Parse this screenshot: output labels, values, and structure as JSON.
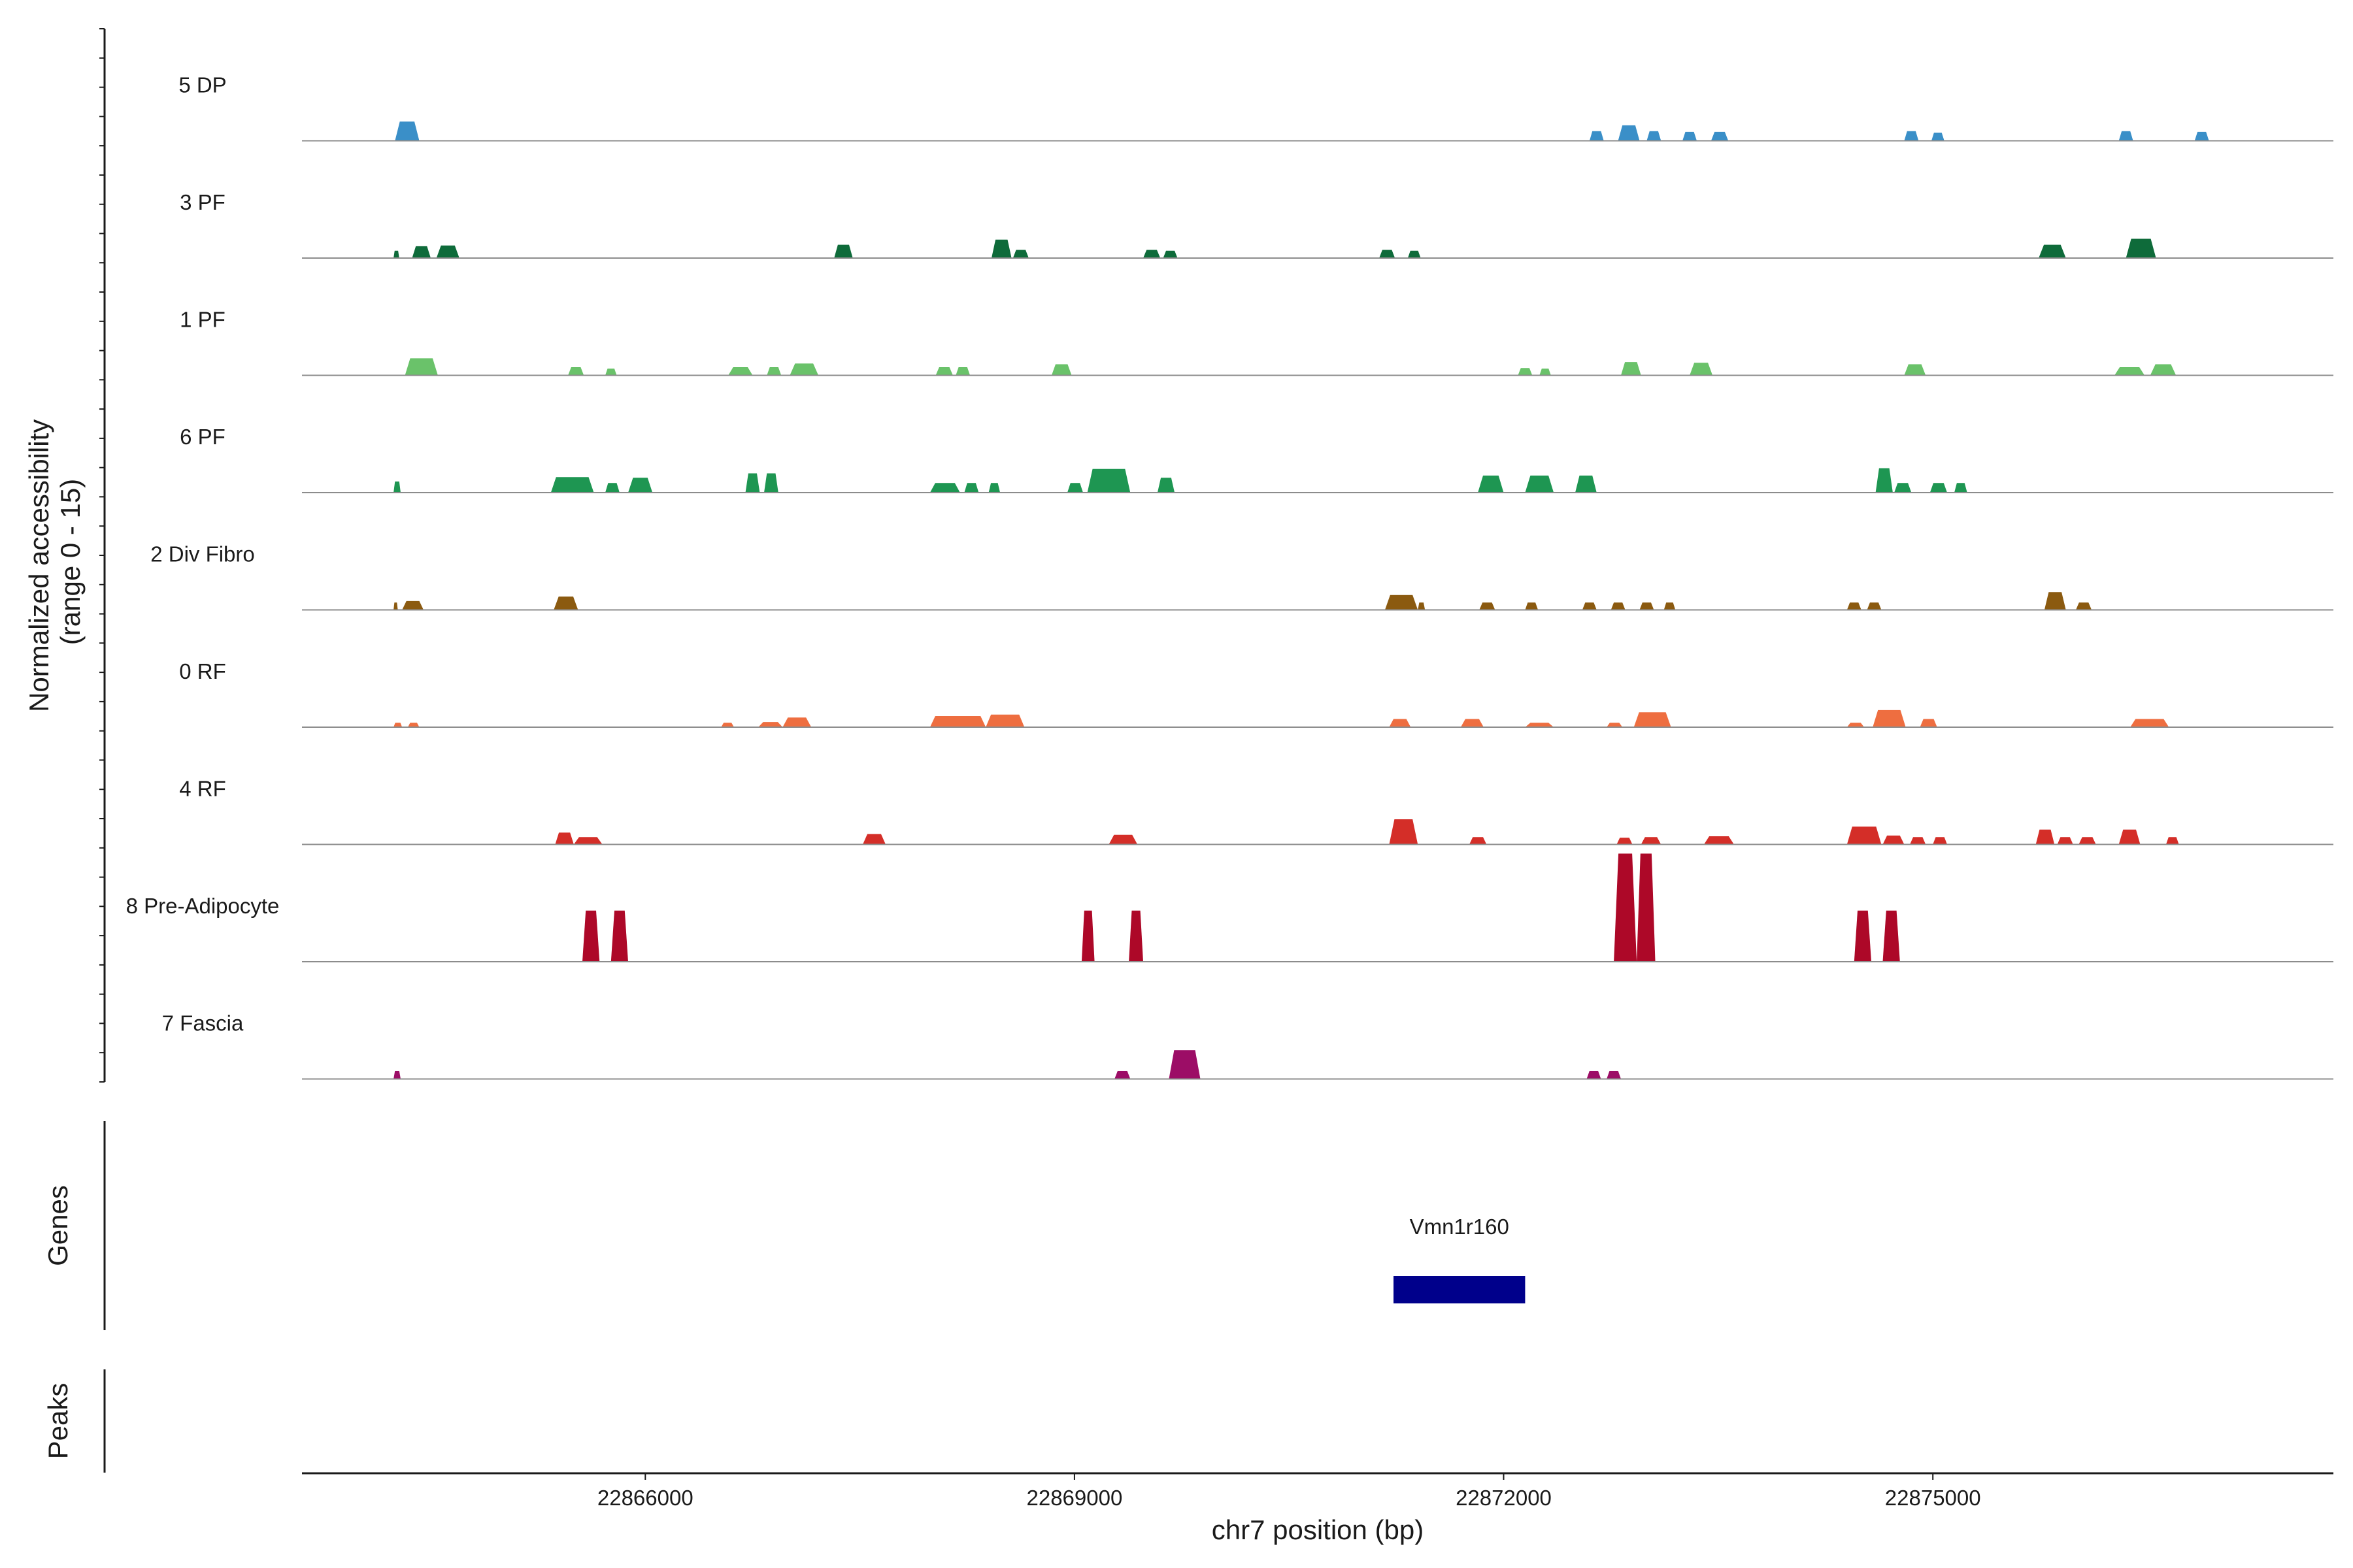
{
  "chart_data": {
    "type": "area",
    "title": "",
    "xlabel": "chr7 position (bp)",
    "ylabel_line1": "Normalized accessibility",
    "ylabel_line2": "(range 0 - 15)",
    "ylim": [
      0,
      15
    ],
    "xlim": [
      22863600,
      22877800
    ],
    "x_ticks": [
      22866000,
      22869000,
      22872000,
      22875000
    ],
    "x_tick_labels": [
      "22866000",
      "22869000",
      "22872000",
      "22875000"
    ],
    "genes_label": "Genes",
    "peaks_label": "Peaks",
    "genes": [
      {
        "name": "Vmn1r160",
        "start": 22871230,
        "end": 22872150,
        "color": "#00008B"
      }
    ],
    "series": [
      {
        "name": "5 DP",
        "color": "#3A8FC8",
        "peaks": [
          {
            "start": 22864250,
            "end": 22864420,
            "height": 2.6
          },
          {
            "start": 22872600,
            "end": 22872700,
            "height": 1.3
          },
          {
            "start": 22872800,
            "end": 22872950,
            "height": 2.1
          },
          {
            "start": 22873000,
            "end": 22873100,
            "height": 1.3
          },
          {
            "start": 22873250,
            "end": 22873350,
            "height": 1.2
          },
          {
            "start": 22873450,
            "end": 22873570,
            "height": 1.2
          },
          {
            "start": 22874800,
            "end": 22874900,
            "height": 1.3
          },
          {
            "start": 22874990,
            "end": 22875080,
            "height": 1.1
          },
          {
            "start": 22876300,
            "end": 22876400,
            "height": 1.3
          },
          {
            "start": 22876830,
            "end": 22876930,
            "height": 1.2
          }
        ]
      },
      {
        "name": "3 PF",
        "color": "#0E6B3A",
        "peaks": [
          {
            "start": 22864240,
            "end": 22864280,
            "height": 1.0
          },
          {
            "start": 22864370,
            "end": 22864500,
            "height": 1.6
          },
          {
            "start": 22864540,
            "end": 22864700,
            "height": 1.7
          },
          {
            "start": 22867320,
            "end": 22867450,
            "height": 1.8
          },
          {
            "start": 22868420,
            "end": 22868560,
            "height": 2.5
          },
          {
            "start": 22868570,
            "end": 22868680,
            "height": 1.1
          },
          {
            "start": 22869480,
            "end": 22869600,
            "height": 1.1
          },
          {
            "start": 22869620,
            "end": 22869720,
            "height": 1.0
          },
          {
            "start": 22871130,
            "end": 22871240,
            "height": 1.1
          },
          {
            "start": 22871330,
            "end": 22871420,
            "height": 1.0
          },
          {
            "start": 22875740,
            "end": 22875930,
            "height": 1.8
          },
          {
            "start": 22876350,
            "end": 22876560,
            "height": 2.6
          }
        ]
      },
      {
        "name": "1 PF",
        "color": "#6AC26A",
        "peaks": [
          {
            "start": 22864320,
            "end": 22864550,
            "height": 2.3
          },
          {
            "start": 22865460,
            "end": 22865570,
            "height": 1.1
          },
          {
            "start": 22865720,
            "end": 22865800,
            "height": 0.9
          },
          {
            "start": 22866580,
            "end": 22866750,
            "height": 1.1
          },
          {
            "start": 22866850,
            "end": 22866950,
            "height": 1.1
          },
          {
            "start": 22867010,
            "end": 22867210,
            "height": 1.6
          },
          {
            "start": 22868030,
            "end": 22868150,
            "height": 1.1
          },
          {
            "start": 22868170,
            "end": 22868270,
            "height": 1.1
          },
          {
            "start": 22868840,
            "end": 22868980,
            "height": 1.5
          },
          {
            "start": 22872100,
            "end": 22872200,
            "height": 1.0
          },
          {
            "start": 22872250,
            "end": 22872330,
            "height": 0.9
          },
          {
            "start": 22872820,
            "end": 22872960,
            "height": 1.8
          },
          {
            "start": 22873300,
            "end": 22873460,
            "height": 1.7
          },
          {
            "start": 22874800,
            "end": 22874950,
            "height": 1.5
          },
          {
            "start": 22876270,
            "end": 22876480,
            "height": 1.1
          },
          {
            "start": 22876520,
            "end": 22876700,
            "height": 1.5
          }
        ]
      },
      {
        "name": "6 PF",
        "color": "#1E9652",
        "peaks": [
          {
            "start": 22864240,
            "end": 22864290,
            "height": 1.5
          },
          {
            "start": 22865340,
            "end": 22865640,
            "height": 2.1
          },
          {
            "start": 22865720,
            "end": 22865820,
            "height": 1.3
          },
          {
            "start": 22865880,
            "end": 22866050,
            "height": 2.0
          },
          {
            "start": 22866700,
            "end": 22866800,
            "height": 2.6
          },
          {
            "start": 22866830,
            "end": 22866930,
            "height": 2.6
          },
          {
            "start": 22867990,
            "end": 22868200,
            "height": 1.3
          },
          {
            "start": 22868230,
            "end": 22868330,
            "height": 1.3
          },
          {
            "start": 22868400,
            "end": 22868480,
            "height": 1.3
          },
          {
            "start": 22868950,
            "end": 22869060,
            "height": 1.3
          },
          {
            "start": 22869090,
            "end": 22869390,
            "height": 3.2
          },
          {
            "start": 22869580,
            "end": 22869700,
            "height": 2.0
          },
          {
            "start": 22871820,
            "end": 22872000,
            "height": 2.3
          },
          {
            "start": 22872150,
            "end": 22872350,
            "height": 2.3
          },
          {
            "start": 22872500,
            "end": 22872650,
            "height": 2.3
          },
          {
            "start": 22874600,
            "end": 22874720,
            "height": 3.3
          },
          {
            "start": 22874730,
            "end": 22874850,
            "height": 1.3
          },
          {
            "start": 22874980,
            "end": 22875100,
            "height": 1.3
          },
          {
            "start": 22875150,
            "end": 22875240,
            "height": 1.3
          }
        ]
      },
      {
        "name": "2 Div Fibro",
        "color": "#8B5A10",
        "peaks": [
          {
            "start": 22864240,
            "end": 22864270,
            "height": 1.0
          },
          {
            "start": 22864300,
            "end": 22864450,
            "height": 1.2
          },
          {
            "start": 22865360,
            "end": 22865530,
            "height": 1.8
          },
          {
            "start": 22871170,
            "end": 22871400,
            "height": 2.0
          },
          {
            "start": 22871400,
            "end": 22871450,
            "height": 1.0
          },
          {
            "start": 22871830,
            "end": 22871940,
            "height": 1.0
          },
          {
            "start": 22872150,
            "end": 22872240,
            "height": 1.0
          },
          {
            "start": 22872550,
            "end": 22872650,
            "height": 1.0
          },
          {
            "start": 22872750,
            "end": 22872850,
            "height": 1.0
          },
          {
            "start": 22872950,
            "end": 22873050,
            "height": 1.0
          },
          {
            "start": 22873120,
            "end": 22873200,
            "height": 1.0
          },
          {
            "start": 22874400,
            "end": 22874500,
            "height": 1.0
          },
          {
            "start": 22874540,
            "end": 22874640,
            "height": 1.0
          },
          {
            "start": 22875780,
            "end": 22875930,
            "height": 2.4
          },
          {
            "start": 22876000,
            "end": 22876110,
            "height": 1.0
          }
        ]
      },
      {
        "name": "0 RF",
        "color": "#EE6E40",
        "peaks": [
          {
            "start": 22864240,
            "end": 22864300,
            "height": 0.6
          },
          {
            "start": 22864340,
            "end": 22864420,
            "height": 0.6
          },
          {
            "start": 22866530,
            "end": 22866620,
            "height": 0.6
          },
          {
            "start": 22866790,
            "end": 22866960,
            "height": 0.7
          },
          {
            "start": 22866960,
            "end": 22867160,
            "height": 1.3
          },
          {
            "start": 22867990,
            "end": 22868380,
            "height": 1.5
          },
          {
            "start": 22868380,
            "end": 22868650,
            "height": 1.7
          },
          {
            "start": 22871200,
            "end": 22871350,
            "height": 1.1
          },
          {
            "start": 22871700,
            "end": 22871860,
            "height": 1.1
          },
          {
            "start": 22872150,
            "end": 22872350,
            "height": 0.6
          },
          {
            "start": 22872720,
            "end": 22872830,
            "height": 0.6
          },
          {
            "start": 22872910,
            "end": 22873170,
            "height": 2.0
          },
          {
            "start": 22874400,
            "end": 22874520,
            "height": 0.6
          },
          {
            "start": 22874580,
            "end": 22874810,
            "height": 2.3
          },
          {
            "start": 22874910,
            "end": 22875030,
            "height": 1.1
          },
          {
            "start": 22876380,
            "end": 22876650,
            "height": 1.1
          }
        ]
      },
      {
        "name": "4 RF",
        "color": "#D42E28",
        "peaks": [
          {
            "start": 22865370,
            "end": 22865500,
            "height": 1.6
          },
          {
            "start": 22865500,
            "end": 22865700,
            "height": 1.0
          },
          {
            "start": 22867520,
            "end": 22867680,
            "height": 1.4
          },
          {
            "start": 22869240,
            "end": 22869440,
            "height": 1.3
          },
          {
            "start": 22871200,
            "end": 22871400,
            "height": 3.4
          },
          {
            "start": 22871760,
            "end": 22871880,
            "height": 1.0
          },
          {
            "start": 22872790,
            "end": 22872900,
            "height": 0.9
          },
          {
            "start": 22872960,
            "end": 22873100,
            "height": 1.0
          },
          {
            "start": 22873400,
            "end": 22873610,
            "height": 1.1
          },
          {
            "start": 22874400,
            "end": 22874640,
            "height": 2.4
          },
          {
            "start": 22874650,
            "end": 22874800,
            "height": 1.2
          },
          {
            "start": 22874840,
            "end": 22874950,
            "height": 1.0
          },
          {
            "start": 22875000,
            "end": 22875100,
            "height": 1.0
          },
          {
            "start": 22875720,
            "end": 22875850,
            "height": 2.0
          },
          {
            "start": 22875870,
            "end": 22875980,
            "height": 1.0
          },
          {
            "start": 22876020,
            "end": 22876140,
            "height": 1.0
          },
          {
            "start": 22876300,
            "end": 22876450,
            "height": 2.0
          },
          {
            "start": 22876630,
            "end": 22876720,
            "height": 1.0
          }
        ]
      },
      {
        "name": "8 Pre-Adipocyte",
        "color": "#AD0828",
        "peaks": [
          {
            "start": 22865560,
            "end": 22865680,
            "height": 6.9
          },
          {
            "start": 22865760,
            "end": 22865880,
            "height": 6.9
          },
          {
            "start": 22869050,
            "end": 22869140,
            "height": 6.9
          },
          {
            "start": 22869380,
            "end": 22869480,
            "height": 6.9
          },
          {
            "start": 22872770,
            "end": 22872930,
            "height": 14.6
          },
          {
            "start": 22872930,
            "end": 22873060,
            "height": 14.6
          },
          {
            "start": 22874450,
            "end": 22874570,
            "height": 6.9
          },
          {
            "start": 22874650,
            "end": 22874770,
            "height": 6.9
          }
        ]
      },
      {
        "name": "7 Fascia",
        "color": "#9C0D66",
        "peaks": [
          {
            "start": 22864240,
            "end": 22864290,
            "height": 1.1
          },
          {
            "start": 22869280,
            "end": 22869390,
            "height": 1.1
          },
          {
            "start": 22869660,
            "end": 22869880,
            "height": 3.9
          },
          {
            "start": 22872580,
            "end": 22872680,
            "height": 1.1
          },
          {
            "start": 22872720,
            "end": 22872820,
            "height": 1.1
          }
        ]
      }
    ]
  }
}
